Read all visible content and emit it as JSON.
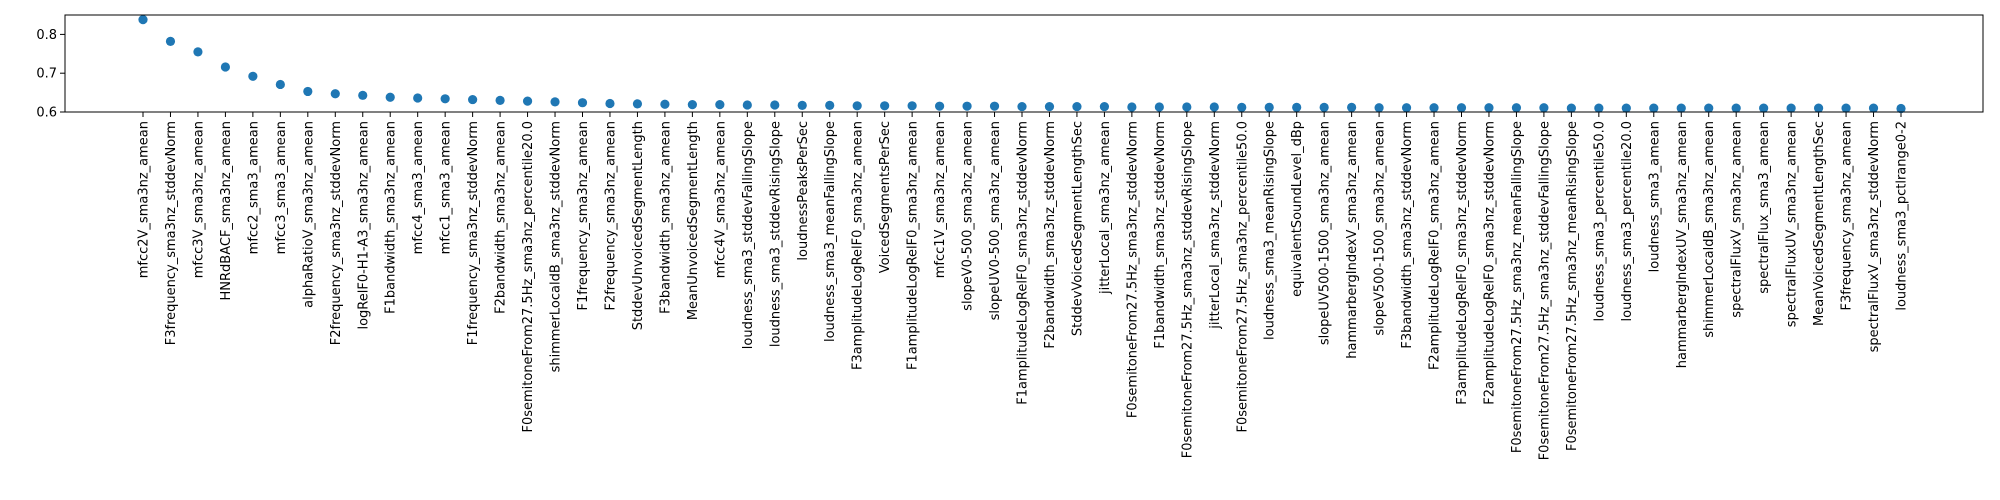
{
  "chart_data": {
    "type": "scatter",
    "marker_color": "#1f77b4",
    "grid": false,
    "title": "",
    "xlabel": "",
    "ylabel": "",
    "ylim": [
      0.6,
      0.85
    ],
    "yticks": [
      0.6,
      0.7,
      0.8
    ],
    "categories": [
      "mfcc2V_sma3nz_amean",
      "F3frequency_sma3nz_stddevNorm",
      "mfcc3V_sma3nz_amean",
      "HNRdBACF_sma3nz_amean",
      "mfcc2_sma3_amean",
      "mfcc3_sma3_amean",
      "alphaRatioV_sma3nz_amean",
      "F2frequency_sma3nz_stddevNorm",
      "logRelF0-H1-A3_sma3nz_amean",
      "F1bandwidth_sma3nz_amean",
      "mfcc4_sma3_amean",
      "mfcc1_sma3_amean",
      "F1frequency_sma3nz_stddevNorm",
      "F2bandwidth_sma3nz_amean",
      "F0semitoneFrom27.5Hz_sma3nz_percentile20.0",
      "shimmerLocaldB_sma3nz_stddevNorm",
      "F1frequency_sma3nz_amean",
      "F2frequency_sma3nz_amean",
      "StddevUnvoicedSegmentLength",
      "F3bandwidth_sma3nz_amean",
      "MeanUnvoicedSegmentLength",
      "mfcc4V_sma3nz_amean",
      "loudness_sma3_stddevFallingSlope",
      "loudness_sma3_stddevRisingSlope",
      "loudnessPeaksPerSec",
      "loudness_sma3_meanFallingSlope",
      "F3amplitudeLogRelF0_sma3nz_amean",
      "VoicedSegmentsPerSec",
      "F1amplitudeLogRelF0_sma3nz_amean",
      "mfcc1V_sma3nz_amean",
      "slopeV0-500_sma3nz_amean",
      "slopeUV0-500_sma3nz_amean",
      "F1amplitudeLogRelF0_sma3nz_stddevNorm",
      "F2bandwidth_sma3nz_stddevNorm",
      "StddevVoicedSegmentLengthSec",
      "jitterLocal_sma3nz_amean",
      "F0semitoneFrom27.5Hz_sma3nz_stddevNorm",
      "F1bandwidth_sma3nz_stddevNorm",
      "F0semitoneFrom27.5Hz_sma3nz_stddevRisingSlope",
      "jitterLocal_sma3nz_stddevNorm",
      "F0semitoneFrom27.5Hz_sma3nz_percentile50.0",
      "loudness_sma3_meanRisingSlope",
      "equivalentSoundLevel_dBp",
      "slopeUV500-1500_sma3nz_amean",
      "hammarbergIndexV_sma3nz_amean",
      "slopeV500-1500_sma3nz_amean",
      "F3bandwidth_sma3nz_stddevNorm",
      "F2amplitudeLogRelF0_sma3nz_amean",
      "F3amplitudeLogRelF0_sma3nz_stddevNorm",
      "F2amplitudeLogRelF0_sma3nz_stddevNorm",
      "F0semitoneFrom27.5Hz_sma3nz_meanFallingSlope",
      "F0semitoneFrom27.5Hz_sma3nz_stddevFallingSlope",
      "F0semitoneFrom27.5Hz_sma3nz_meanRisingSlope",
      "loudness_sma3_percentile50.0",
      "loudness_sma3_percentile20.0",
      "loudness_sma3_amean",
      "hammarbergIndexUV_sma3nz_amean",
      "shimmerLocaldB_sma3nz_amean",
      "spectralFluxV_sma3nz_amean",
      "spectralFlux_sma3_amean",
      "spectralFluxUV_sma3nz_amean",
      "MeanVoicedSegmentLengthSec",
      "F3frequency_sma3nz_amean",
      "spectralFluxV_sma3nz_stddevNorm",
      "loudness_sma3_pctlrange0-2"
    ],
    "values": [
      0.838,
      0.782,
      0.755,
      0.716,
      0.692,
      0.671,
      0.653,
      0.647,
      0.643,
      0.638,
      0.636,
      0.634,
      0.632,
      0.63,
      0.628,
      0.626,
      0.624,
      0.622,
      0.621,
      0.62,
      0.619,
      0.619,
      0.618,
      0.618,
      0.617,
      0.617,
      0.616,
      0.616,
      0.616,
      0.615,
      0.615,
      0.615,
      0.614,
      0.614,
      0.614,
      0.614,
      0.613,
      0.613,
      0.613,
      0.613,
      0.612,
      0.612,
      0.612,
      0.612,
      0.612,
      0.611,
      0.611,
      0.611,
      0.611,
      0.611,
      0.611,
      0.611,
      0.61,
      0.61,
      0.61,
      0.61,
      0.61,
      0.61,
      0.61,
      0.61,
      0.61,
      0.61,
      0.61,
      0.61,
      0.609
    ]
  }
}
